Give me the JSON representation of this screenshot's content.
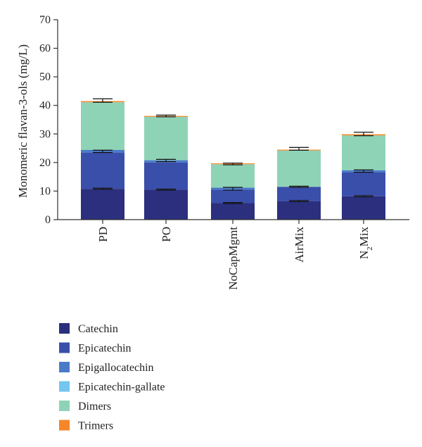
{
  "chart_data": {
    "type": "bar",
    "stacked": true,
    "ylabel": "Monomeric flavan-3-ols (mg/L)",
    "ylim": [
      0,
      70
    ],
    "yticks": [
      0,
      10,
      20,
      30,
      40,
      50,
      60,
      70
    ],
    "categories": [
      {
        "main": "PD",
        "sub": ""
      },
      {
        "main": "PO",
        "sub": ""
      },
      {
        "main": "NoCapMgmt",
        "sub": ""
      },
      {
        "main": "AirMix",
        "sub": ""
      },
      {
        "main": "N",
        "sub": "2",
        "rest": "Mix"
      }
    ],
    "series": [
      {
        "name": "Catechin",
        "color": "#2b2f7e",
        "values": [
          10.8,
          10.5,
          5.8,
          6.5,
          8.2
        ]
      },
      {
        "name": "Epicatechin",
        "color": "#3a4faa",
        "values": [
          12.7,
          9.5,
          4.7,
          5.0,
          8.4
        ]
      },
      {
        "name": "Epigallocatechin",
        "color": "#4a7bc9",
        "values": [
          0.9,
          0.8,
          0.7,
          0.0,
          0.7
        ]
      },
      {
        "name": "Epicatechin-gallate",
        "color": "#74c6ee",
        "values": [
          0.0,
          0.0,
          0.0,
          0.0,
          0.0
        ]
      },
      {
        "name": "Dimers",
        "color": "#8fd3b6",
        "values": [
          16.7,
          15.2,
          8.2,
          12.7,
          12.2
        ]
      },
      {
        "name": "Trimers",
        "color": "#f5872a",
        "values": [
          0.4,
          0.3,
          0.3,
          0.3,
          0.4
        ]
      }
    ],
    "error_bars": [
      {
        "at": 10.8,
        "err": 0.2,
        "bar": 0
      },
      {
        "at": 23.9,
        "err": 0.4,
        "bar": 0
      },
      {
        "at": 41.7,
        "err": 0.6,
        "bar": 0
      },
      {
        "at": 10.5,
        "err": 0.2,
        "bar": 1
      },
      {
        "at": 20.7,
        "err": 0.4,
        "bar": 1
      },
      {
        "at": 36.3,
        "err": 0.3,
        "bar": 1
      },
      {
        "at": 5.8,
        "err": 0.2,
        "bar": 2
      },
      {
        "at": 10.8,
        "err": 0.5,
        "bar": 2
      },
      {
        "at": 19.5,
        "err": 0.3,
        "bar": 2
      },
      {
        "at": 6.5,
        "err": 0.2,
        "bar": 3
      },
      {
        "at": 11.5,
        "err": 0.2,
        "bar": 3
      },
      {
        "at": 24.8,
        "err": 0.5,
        "bar": 3
      },
      {
        "at": 8.2,
        "err": 0.2,
        "bar": 4
      },
      {
        "at": 17.0,
        "err": 0.4,
        "bar": 4
      },
      {
        "at": 30.0,
        "err": 0.6,
        "bar": 4
      }
    ],
    "legend_position": "bottom-left"
  }
}
